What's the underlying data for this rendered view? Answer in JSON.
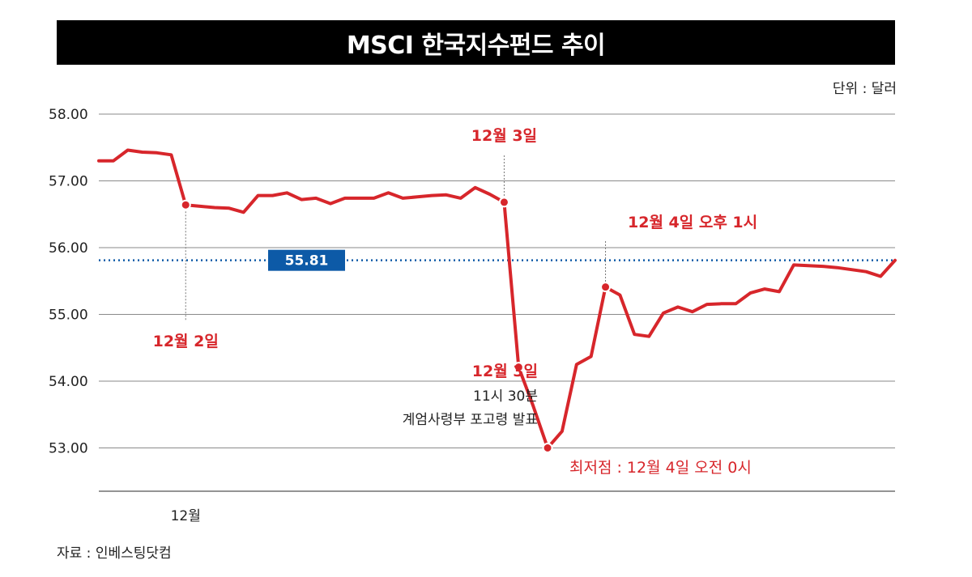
{
  "chart_data": {
    "type": "line",
    "title": "MSCI 한국지수펀드 추이",
    "unit": "단위 : 달러",
    "source": "자료 : 인베스팅닷컴",
    "ylim": [
      52.35,
      58.0
    ],
    "yticks": [
      "58.00",
      "57.00",
      "56.00",
      "55.00",
      "54.00",
      "53.00"
    ],
    "xtick_labels": [
      "12월"
    ],
    "grid": true,
    "line_color": "#d7262b",
    "reference": {
      "value": 55.81,
      "label": "55.81",
      "color": "#0d5aa7"
    },
    "series": [
      {
        "values": [
          57.3,
          57.3,
          57.46,
          57.43,
          57.42,
          57.39,
          56.64,
          56.62,
          56.6,
          56.59,
          56.53,
          56.78,
          56.78,
          56.82,
          56.72,
          56.74,
          56.66,
          56.74,
          56.74,
          56.74,
          56.82,
          56.74,
          56.76,
          56.78,
          56.79,
          56.74,
          56.9,
          56.8,
          56.68,
          54.21,
          53.63,
          53.0,
          53.25,
          54.25,
          54.37,
          55.41,
          55.29,
          54.7,
          54.67,
          55.02,
          55.11,
          55.04,
          55.15,
          55.16,
          55.16,
          55.32,
          55.38,
          55.34,
          55.74,
          55.73,
          55.72,
          55.7,
          55.67,
          55.64,
          55.57,
          55.81
        ]
      }
    ],
    "annotations": [
      {
        "index": 6,
        "label": "12월 2일",
        "label_position": "below"
      },
      {
        "index": 28,
        "label": "12월 3일",
        "label_position": "above"
      },
      {
        "index": 29,
        "label": "12월 3일",
        "sublines": [
          "11시 30분",
          "계엄사령부 포고령 발표"
        ],
        "label_position": "left"
      },
      {
        "index": 31,
        "label": "최저점 : 12월 4일 오전 0시",
        "label_position": "below"
      },
      {
        "index": 35,
        "label": "12월 4일 오후 1시",
        "label_position": "above"
      }
    ]
  }
}
